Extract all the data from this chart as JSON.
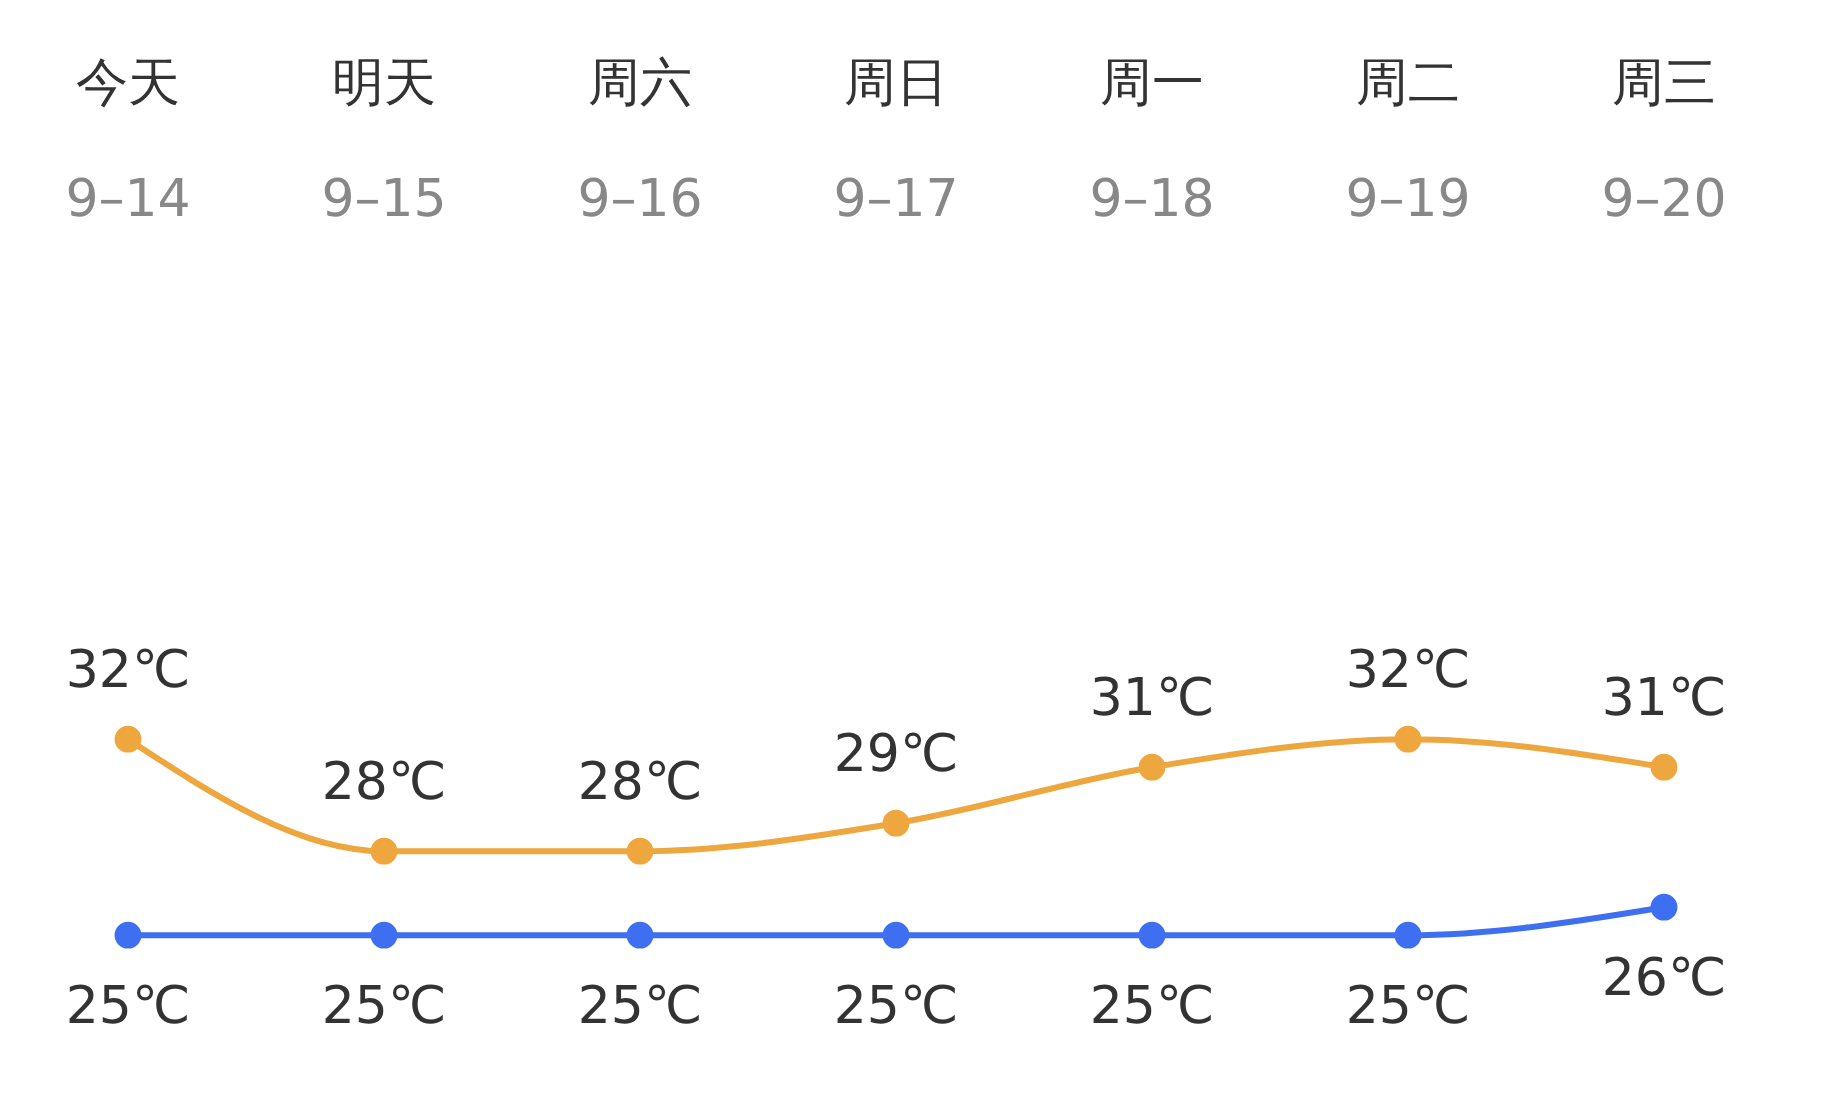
{
  "chart_data": {
    "type": "line",
    "categories": [
      "今天\n9–14",
      "明天\n9–15",
      "周六\n9–16",
      "周日\n9–17",
      "周一\n9–18",
      "周二\n9–19",
      "周三\n9–20"
    ],
    "series": [
      {
        "color": "#eea63e",
        "values": [
          32,
          28,
          28,
          29,
          31,
          32,
          31
        ],
        "value_labels": [
          "32℃",
          "28℃",
          "28℃",
          "29℃",
          "31℃",
          "32℃",
          "31℃"
        ]
      },
      {
        "color": "#3d6ff0",
        "values": [
          25,
          25,
          25,
          25,
          25,
          25,
          26
        ],
        "value_labels": [
          "25℃",
          "25℃",
          "25℃",
          "25℃",
          "25℃",
          "25℃",
          "26℃"
        ]
      }
    ],
    "data_labels": true,
    "marker": "circle",
    "line_style": "solid"
  }
}
